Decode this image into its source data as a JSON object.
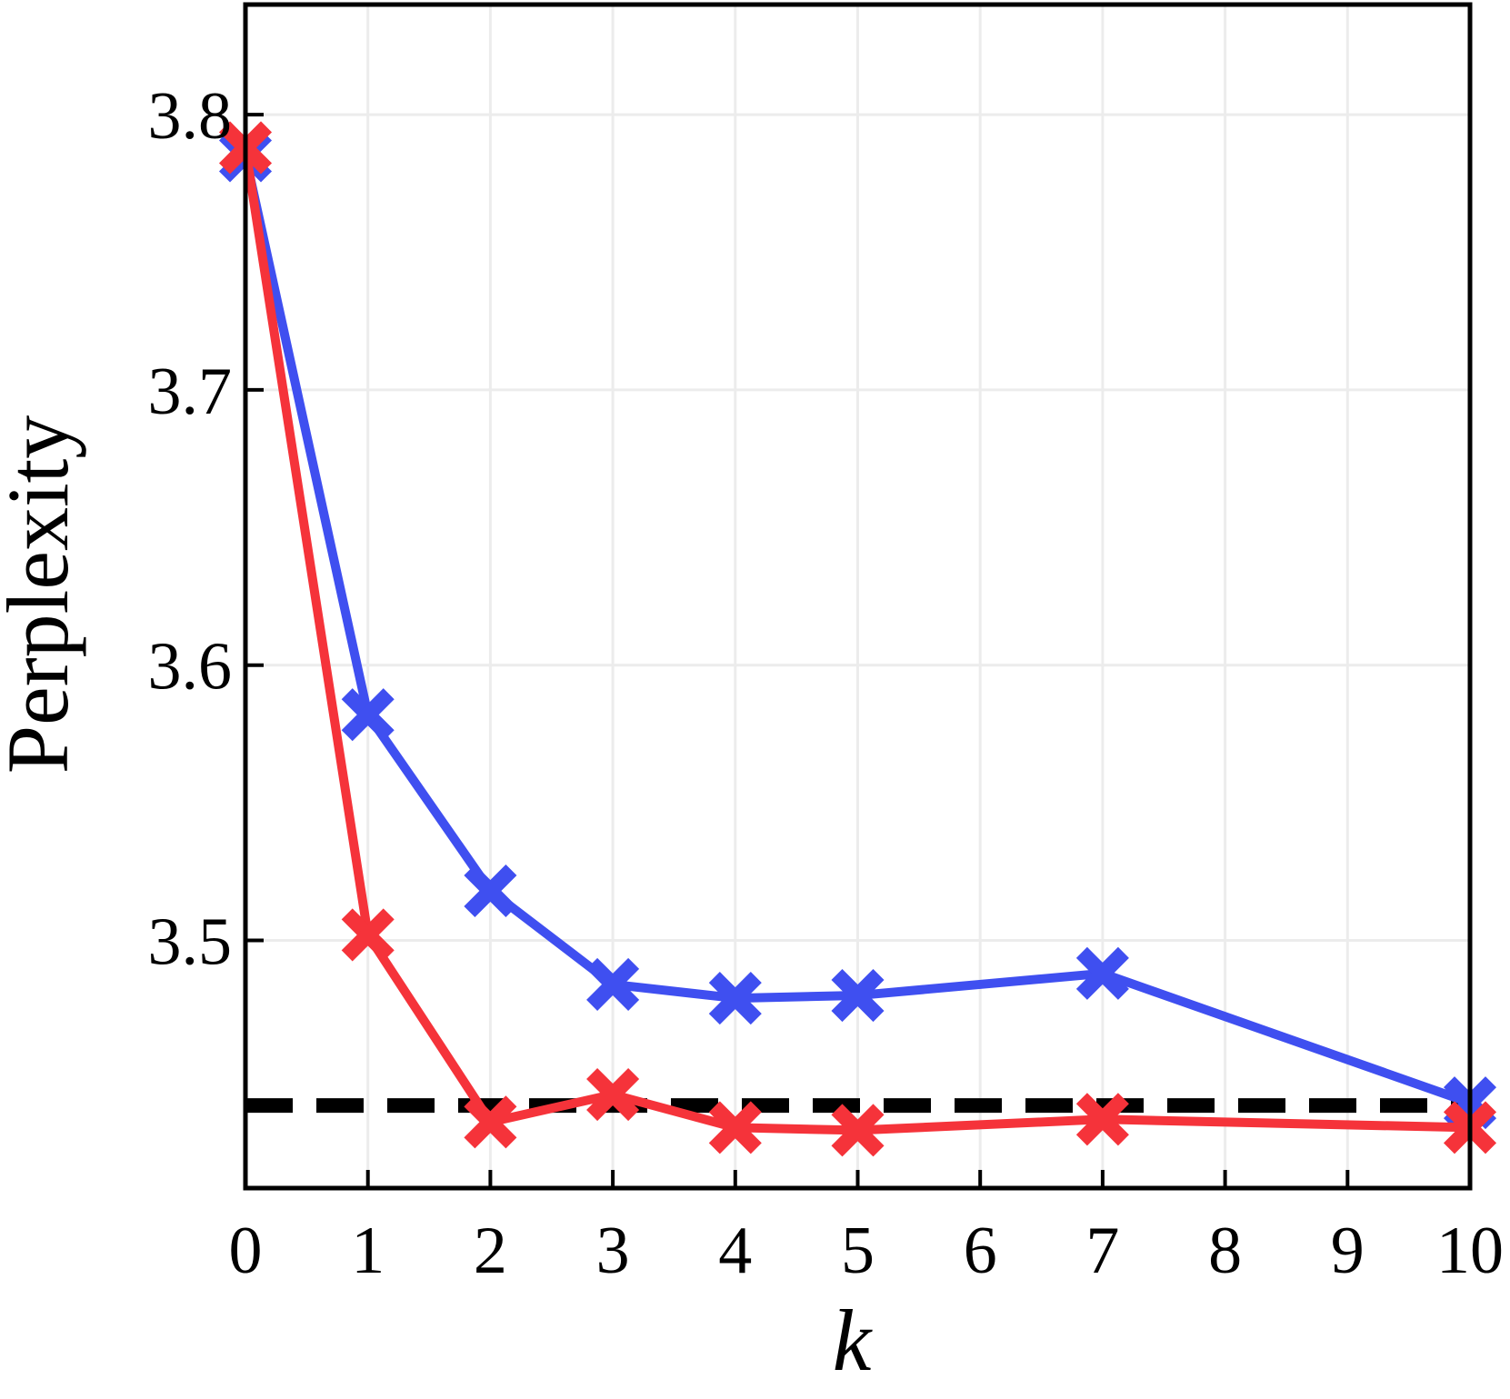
{
  "chart_data": {
    "type": "line",
    "title": "",
    "xlabel": "k",
    "ylabel": "Perplexity",
    "x_tick_labels": [
      "0",
      "1",
      "2",
      "3",
      "4",
      "5",
      "6",
      "7",
      "8",
      "9",
      "10"
    ],
    "y_tick_labels": [
      "3.5",
      "3.6",
      "3.7",
      "3.8"
    ],
    "y_ticks": [
      3.5,
      3.6,
      3.7,
      3.8
    ],
    "xlim": [
      0,
      10
    ],
    "ylim": [
      3.41,
      3.84
    ],
    "grid": true,
    "legend": "none",
    "x": [
      0,
      1,
      2,
      3,
      4,
      5,
      7,
      10
    ],
    "series": [
      {
        "color": "#3f4ff0",
        "marker": "x",
        "values": [
          3.785,
          3.582,
          3.518,
          3.484,
          3.479,
          3.48,
          3.488,
          3.441
        ]
      },
      {
        "color": "#f5333a",
        "marker": "x",
        "values": [
          3.788,
          3.502,
          3.434,
          3.444,
          3.432,
          3.431,
          3.435,
          3.432
        ]
      }
    ],
    "reference_line": {
      "y": 3.44,
      "color": "#000000",
      "style": "dashed"
    }
  }
}
